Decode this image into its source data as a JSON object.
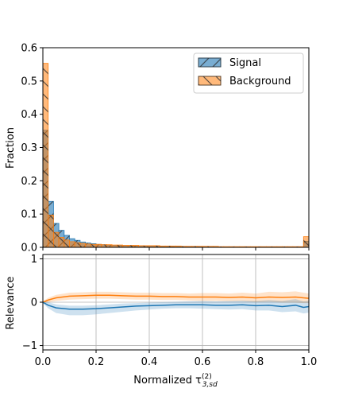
{
  "chart_data": [
    {
      "type": "histogram",
      "ylabel": "Fraction",
      "xlim": [
        0,
        1
      ],
      "ylim": [
        0,
        0.6
      ],
      "yticks": [
        "0.0",
        "0.1",
        "0.2",
        "0.3",
        "0.4",
        "0.5",
        "0.6"
      ],
      "yticks_values": [
        0,
        0.1,
        0.2,
        0.3,
        0.4,
        0.5,
        0.6
      ],
      "bin_width": 0.02,
      "legend_position": "top-right",
      "series": [
        {
          "name": "Signal",
          "color": "#1f77b4",
          "hatch": "/",
          "values": [
            0.352,
            0.138,
            0.072,
            0.051,
            0.036,
            0.026,
            0.021,
            0.016,
            0.013,
            0.011,
            0.009,
            0.008,
            0.007,
            0.006,
            0.005,
            0.005,
            0.004,
            0.004,
            0.003,
            0.003,
            0.003,
            0.003,
            0.002,
            0.002,
            0.002,
            0.002,
            0.002,
            0.002,
            0.002,
            0.002,
            0.001,
            0.001,
            0.001,
            0.001,
            0.001,
            0.001,
            0.001,
            0.001,
            0.001,
            0.001,
            0.001,
            0.001,
            0.001,
            0.001,
            0.001,
            0.001,
            0.001,
            0.001,
            0.001,
            0.018
          ]
        },
        {
          "name": "Background",
          "color": "#ff7f0e",
          "hatch": "\\",
          "values": [
            0.553,
            0.097,
            0.045,
            0.03,
            0.022,
            0.017,
            0.014,
            0.012,
            0.01,
            0.009,
            0.009,
            0.008,
            0.008,
            0.007,
            0.007,
            0.006,
            0.006,
            0.006,
            0.005,
            0.005,
            0.005,
            0.005,
            0.004,
            0.004,
            0.004,
            0.004,
            0.003,
            0.003,
            0.003,
            0.003,
            0.003,
            0.003,
            0.003,
            0.002,
            0.002,
            0.002,
            0.002,
            0.002,
            0.002,
            0.002,
            0.002,
            0.002,
            0.002,
            0.002,
            0.002,
            0.002,
            0.002,
            0.002,
            0.002,
            0.032
          ]
        }
      ]
    },
    {
      "type": "line",
      "ylabel": "Relevance",
      "xlabel_main": "Normalized τ",
      "xlabel_sup": "(2)",
      "xlabel_sub": "3,sd",
      "xlim": [
        0,
        1
      ],
      "ylim": [
        -1.1,
        1.1
      ],
      "grid": true,
      "xticks": [
        "0.0",
        "0.2",
        "0.4",
        "0.6",
        "0.8",
        "1.0"
      ],
      "xticks_values": [
        0,
        0.2,
        0.4,
        0.6,
        0.8,
        1.0
      ],
      "yticks": [
        "−1",
        "0",
        "1"
      ],
      "yticks_values": [
        -1,
        0,
        1
      ],
      "series": [
        {
          "name": "Background relevance",
          "color": "#ff7f0e",
          "x": [
            0.0,
            0.02,
            0.05,
            0.1,
            0.15,
            0.2,
            0.25,
            0.3,
            0.35,
            0.4,
            0.45,
            0.5,
            0.55,
            0.6,
            0.65,
            0.7,
            0.75,
            0.8,
            0.85,
            0.9,
            0.95,
            0.98,
            1.0
          ],
          "y": [
            0.0,
            0.05,
            0.1,
            0.14,
            0.15,
            0.16,
            0.16,
            0.15,
            0.14,
            0.14,
            0.13,
            0.13,
            0.12,
            0.12,
            0.12,
            0.11,
            0.12,
            0.1,
            0.12,
            0.11,
            0.12,
            0.1,
            0.09
          ],
          "band_upper": [
            0.02,
            0.1,
            0.17,
            0.22,
            0.23,
            0.24,
            0.24,
            0.23,
            0.22,
            0.22,
            0.21,
            0.21,
            0.2,
            0.21,
            0.21,
            0.2,
            0.22,
            0.2,
            0.24,
            0.23,
            0.25,
            0.22,
            0.2
          ],
          "band_lower": [
            -0.02,
            0.0,
            0.03,
            0.06,
            0.07,
            0.08,
            0.08,
            0.07,
            0.06,
            0.06,
            0.05,
            0.05,
            0.04,
            0.03,
            0.03,
            0.02,
            0.02,
            0.0,
            0.01,
            -0.01,
            -0.01,
            -0.02,
            -0.02
          ]
        },
        {
          "name": "Signal relevance",
          "color": "#1f77b4",
          "x": [
            0.0,
            0.02,
            0.05,
            0.1,
            0.15,
            0.2,
            0.25,
            0.3,
            0.35,
            0.4,
            0.45,
            0.5,
            0.55,
            0.6,
            0.65,
            0.7,
            0.75,
            0.8,
            0.85,
            0.9,
            0.95,
            0.98,
            1.0
          ],
          "y": [
            0.0,
            -0.07,
            -0.13,
            -0.16,
            -0.16,
            -0.15,
            -0.13,
            -0.11,
            -0.09,
            -0.08,
            -0.07,
            -0.06,
            -0.06,
            -0.06,
            -0.07,
            -0.07,
            -0.06,
            -0.08,
            -0.07,
            -0.1,
            -0.07,
            -0.12,
            -0.1
          ],
          "band_upper": [
            0.02,
            0.0,
            -0.05,
            -0.08,
            -0.08,
            -0.07,
            -0.05,
            -0.03,
            -0.02,
            -0.01,
            0.0,
            0.01,
            0.02,
            0.03,
            0.02,
            0.03,
            0.04,
            0.03,
            0.05,
            0.03,
            0.07,
            0.02,
            0.03
          ],
          "band_lower": [
            -0.02,
            -0.14,
            -0.25,
            -0.3,
            -0.3,
            -0.28,
            -0.25,
            -0.22,
            -0.19,
            -0.17,
            -0.15,
            -0.14,
            -0.14,
            -0.15,
            -0.16,
            -0.17,
            -0.16,
            -0.19,
            -0.19,
            -0.23,
            -0.21,
            -0.26,
            -0.24
          ]
        }
      ]
    }
  ]
}
